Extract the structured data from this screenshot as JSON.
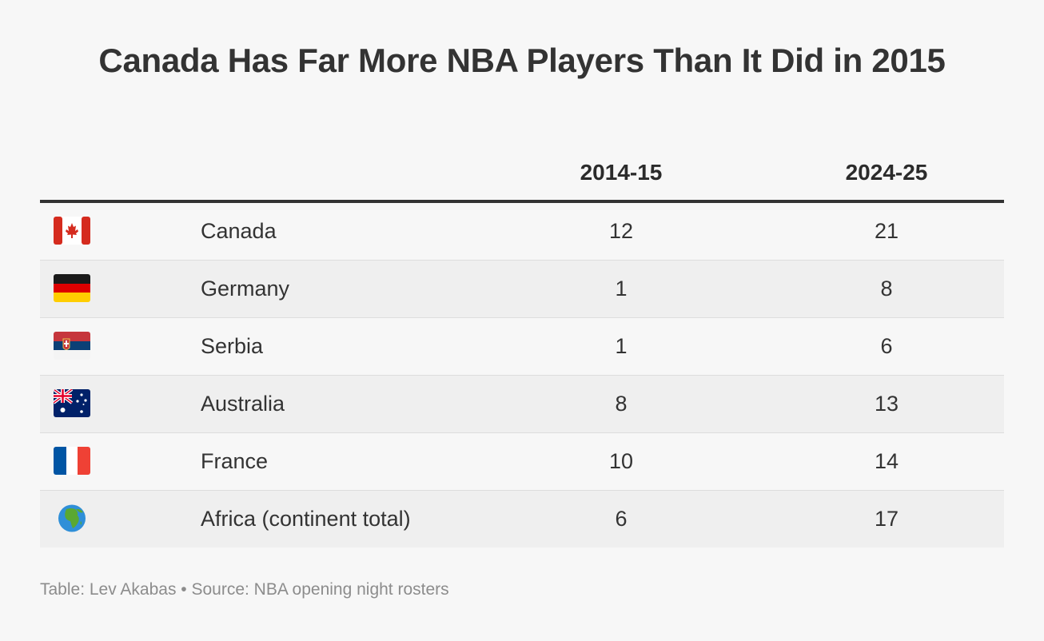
{
  "title": "Canada Has Far More NBA Players Than It Did in 2015",
  "footer": "Table: Lev Akabas • Source: NBA opening night rosters",
  "chart_data": {
    "type": "table",
    "title": "Canada Has Far More NBA Players Than It Did in 2015",
    "columns": [
      "",
      "",
      "2014-15",
      "2024-25"
    ],
    "rows": [
      {
        "flag": "flag-canada-icon",
        "name": "Canada",
        "v2015": "12",
        "v2025": "21"
      },
      {
        "flag": "flag-germany-icon",
        "name": "Germany",
        "v2015": "1",
        "v2025": "8"
      },
      {
        "flag": "flag-serbia-icon",
        "name": "Serbia",
        "v2015": "1",
        "v2025": "6"
      },
      {
        "flag": "flag-australia-icon",
        "name": "Australia",
        "v2015": "8",
        "v2025": "13"
      },
      {
        "flag": "flag-france-icon",
        "name": "France",
        "v2015": "10",
        "v2025": "14"
      },
      {
        "flag": "globe-africa-icon",
        "name": "Africa (continent total)",
        "v2015": "6",
        "v2025": "17"
      }
    ]
  }
}
